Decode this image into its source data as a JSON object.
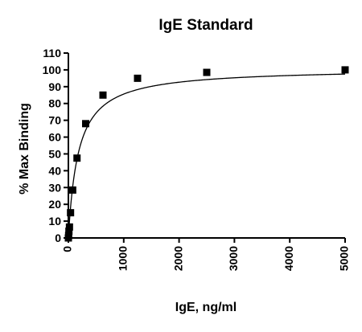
{
  "chart_data": {
    "type": "scatter",
    "title": "IgE Standard",
    "xlabel": "IgE, ng/ml",
    "ylabel": "% Max Binding",
    "xlim": [
      0,
      5000
    ],
    "ylim": [
      0,
      110
    ],
    "x_ticks": [
      0,
      1000,
      2000,
      3000,
      4000,
      5000
    ],
    "y_ticks": [
      0,
      10,
      20,
      30,
      40,
      50,
      60,
      70,
      80,
      90,
      100,
      110
    ],
    "grid": false,
    "legend": "none",
    "fit_curve": true,
    "series": [
      {
        "x": [
          0,
          4.9,
          9.8,
          19.5,
          39,
          78,
          156,
          312.5,
          625,
          1250,
          2500,
          5000
        ],
        "y": [
          0,
          1.5,
          4,
          6.5,
          15,
          28.5,
          47.5,
          68,
          85,
          95,
          98.5,
          100
        ],
        "marker": "square",
        "color": "#000000"
      }
    ]
  }
}
